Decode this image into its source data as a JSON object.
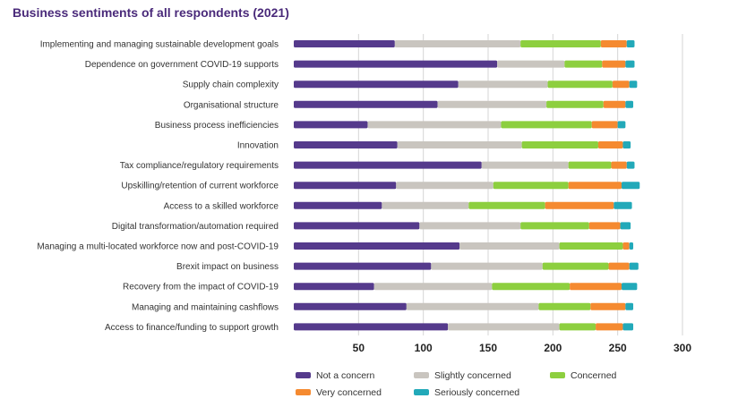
{
  "chart_data": {
    "type": "bar",
    "orientation": "horizontal",
    "stacked": true,
    "title": "Business sentiments of all respondents (2021)",
    "xlabel": "",
    "ylabel": "",
    "xlim": [
      0,
      300
    ],
    "xticks": [
      50,
      100,
      150,
      200,
      250,
      300
    ],
    "grid": true,
    "legend_position": "bottom",
    "categories": [
      "Implementing and managing sustainable development goals",
      "Dependence on government COVID-19 supports",
      "Supply chain complexity",
      "Organisational structure",
      "Business process inefficiencies",
      "Innovation",
      "Tax compliance/regulatory requirements",
      "Upskilling/retention of current workforce",
      "Access to a skilled workforce",
      "Digital transformation/automation required",
      "Managing a multi-located workforce now and post-COVID-19",
      "Brexit impact on business",
      "Recovery from the impact of COVID-19",
      "Managing and maintaining cashflows",
      "Access to finance/funding to support growth"
    ],
    "series": [
      {
        "name": "Not a concern",
        "color": "#553a8c",
        "values": [
          78,
          157,
          127,
          111,
          57,
          80,
          145,
          79,
          68,
          97,
          128,
          106,
          62,
          87,
          119
        ]
      },
      {
        "name": "Slightly concerned",
        "color": "#c9c5bf",
        "values": [
          97,
          52,
          69,
          84,
          103,
          96,
          67,
          75,
          67,
          78,
          77,
          86,
          91,
          102,
          86
        ]
      },
      {
        "name": "Concerned",
        "color": "#8dcf3f",
        "values": [
          62,
          29,
          50,
          44,
          70,
          59,
          33,
          58,
          59,
          53,
          49,
          51,
          60,
          40,
          28
        ]
      },
      {
        "name": "Very concerned",
        "color": "#f58a30",
        "values": [
          20,
          18,
          13,
          17,
          20,
          19,
          12,
          41,
          53,
          24,
          5,
          16,
          40,
          27,
          21
        ]
      },
      {
        "name": "Seriously concerned",
        "color": "#22a9b9",
        "values": [
          6,
          7,
          6,
          6,
          6,
          6,
          6,
          14,
          14,
          8,
          3,
          7,
          12,
          6,
          8
        ]
      }
    ]
  },
  "legend": {
    "items": [
      {
        "label": "Not a concern",
        "color": "#553a8c"
      },
      {
        "label": "Slightly concerned",
        "color": "#c9c5bf"
      },
      {
        "label": "Concerned",
        "color": "#8dcf3f"
      },
      {
        "label": "Very concerned",
        "color": "#f58a30"
      },
      {
        "label": "Seriously concerned",
        "color": "#22a9b9"
      }
    ]
  }
}
